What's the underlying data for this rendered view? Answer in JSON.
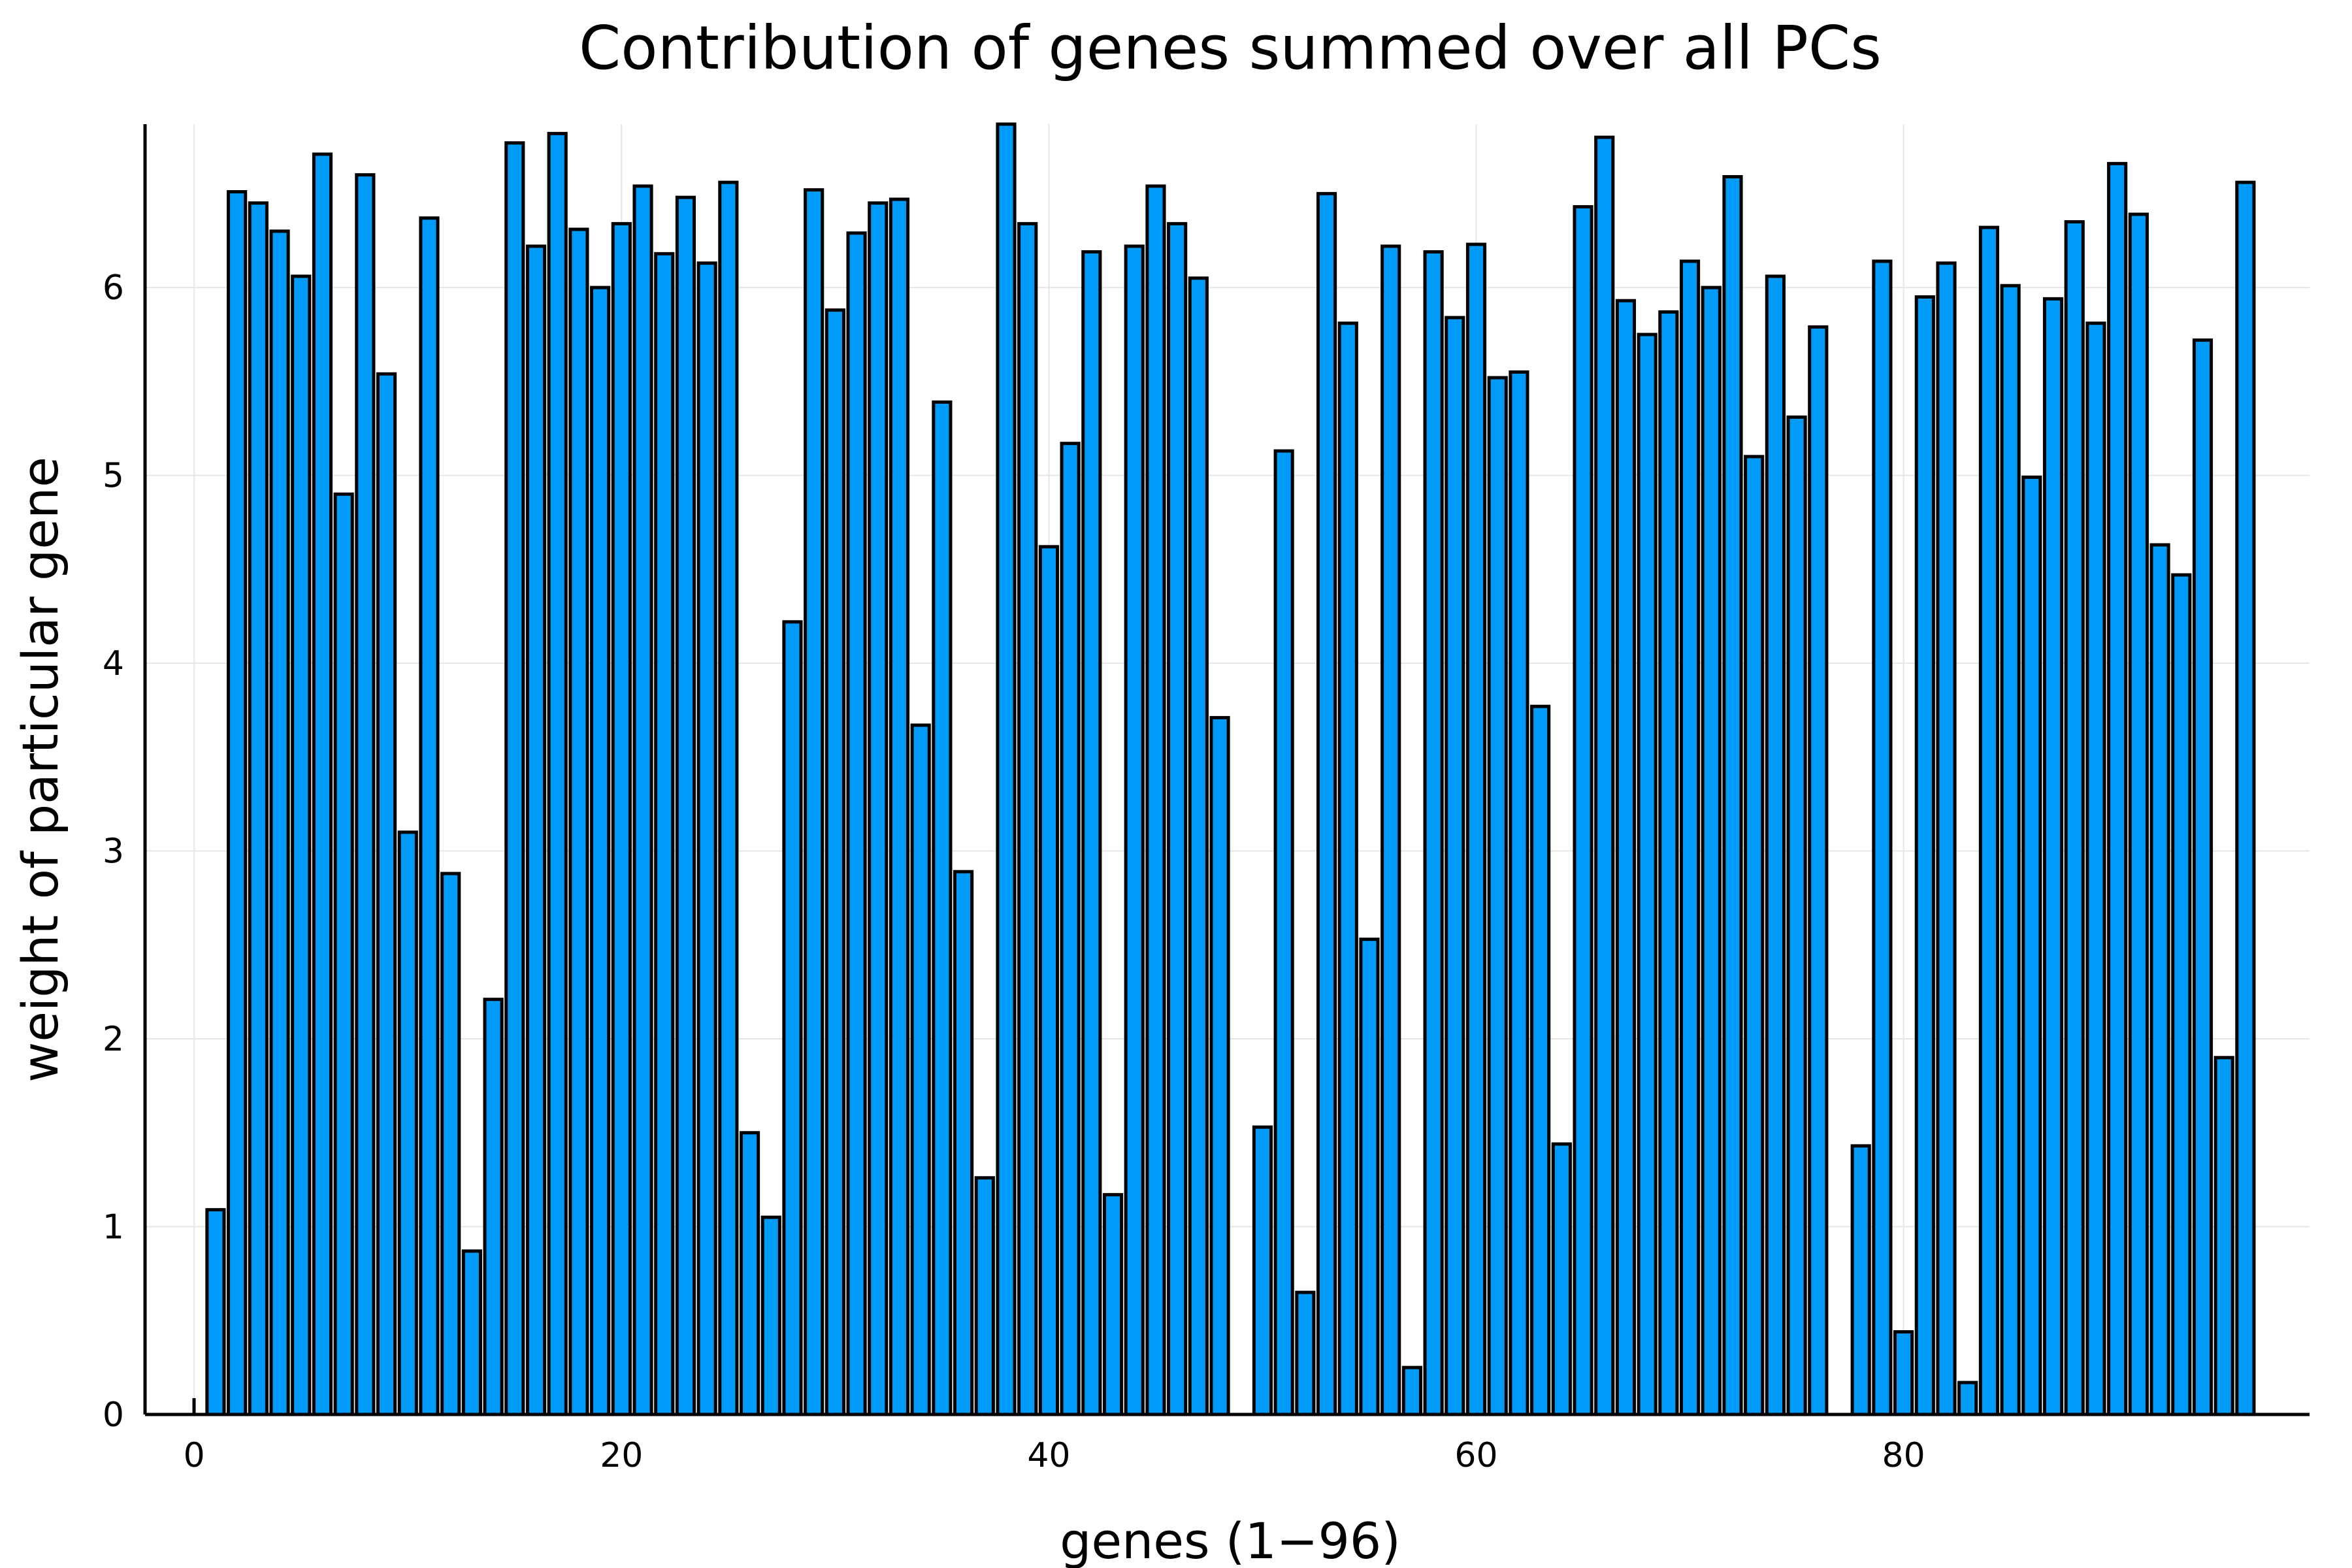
{
  "chart_data": {
    "type": "bar",
    "title": "Contribution of genes summed over all PCs",
    "xlabel": "genes (1−96)",
    "ylabel": "weight of particular gene",
    "xlim": [
      -2.3,
      99
    ],
    "ylim": [
      0,
      6.87
    ],
    "xticks": [
      0,
      20,
      40,
      60,
      80
    ],
    "yticks": [
      0,
      1,
      2,
      3,
      4,
      5,
      6
    ],
    "grid": true,
    "legend": "none",
    "bar_color": "#009AF9",
    "x": [
      1,
      2,
      3,
      4,
      5,
      6,
      7,
      8,
      9,
      10,
      11,
      12,
      13,
      14,
      15,
      16,
      17,
      18,
      19,
      20,
      21,
      22,
      23,
      24,
      25,
      26,
      27,
      28,
      29,
      30,
      31,
      32,
      33,
      34,
      35,
      36,
      37,
      38,
      39,
      40,
      41,
      42,
      43,
      44,
      45,
      46,
      47,
      48,
      49,
      50,
      51,
      52,
      53,
      54,
      55,
      56,
      57,
      58,
      59,
      60,
      61,
      62,
      63,
      64,
      65,
      66,
      67,
      68,
      69,
      70,
      71,
      72,
      73,
      74,
      75,
      76,
      77,
      78,
      79,
      80,
      81,
      82,
      83,
      84,
      85,
      86,
      87,
      88,
      89,
      90,
      91,
      92,
      93,
      94,
      95,
      96
    ],
    "values": [
      1.09,
      6.51,
      6.45,
      6.3,
      6.06,
      6.71,
      4.9,
      6.6,
      5.54,
      3.1,
      6.37,
      2.88,
      0.87,
      2.21,
      6.77,
      6.22,
      6.82,
      6.31,
      6.0,
      6.34,
      6.54,
      6.18,
      6.48,
      6.13,
      6.56,
      1.5,
      1.05,
      4.22,
      6.52,
      5.88,
      6.29,
      6.45,
      6.47,
      3.67,
      5.39,
      2.89,
      1.26,
      6.87,
      6.34,
      4.62,
      5.17,
      6.19,
      1.17,
      6.22,
      6.54,
      6.34,
      6.05,
      3.71,
      0.0,
      1.53,
      5.13,
      0.65,
      6.5,
      5.81,
      2.53,
      6.22,
      0.25,
      6.19,
      5.84,
      6.23,
      5.52,
      5.55,
      3.77,
      1.44,
      6.43,
      6.8,
      5.93,
      5.75,
      5.87,
      6.14,
      6.0,
      6.59,
      5.1,
      6.06,
      5.31,
      5.79,
      0.0,
      1.43,
      6.14,
      0.44,
      5.95,
      6.13,
      0.17,
      6.32,
      6.01,
      4.99,
      5.94,
      6.35,
      5.81,
      6.66,
      6.39,
      4.63,
      4.47,
      5.72,
      1.9,
      6.56
    ]
  }
}
